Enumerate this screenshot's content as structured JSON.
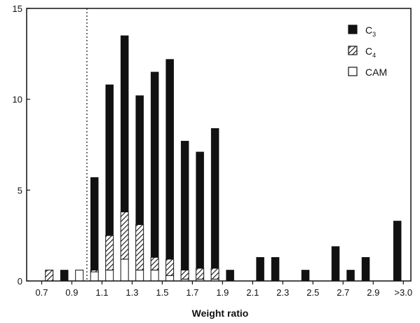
{
  "chart_data": {
    "type": "bar",
    "stacked": true,
    "title": "",
    "xlabel": "Weight ratio",
    "ylabel": "",
    "ylim": [
      0,
      15
    ],
    "yticks": [
      "0",
      "5",
      "10",
      "15"
    ],
    "xtick_labels": [
      "0.7",
      "0.9",
      "1.1",
      "1.3",
      "1.5",
      "1.7",
      "1.9",
      "2.1",
      "2.3",
      "2.5",
      "2.7",
      "2.9",
      ">3.0"
    ],
    "reference_line": {
      "x": 1.0,
      "style": "dotted"
    },
    "legend_position": "top-right",
    "categories": [
      "0.75",
      "0.85",
      "0.95",
      "1.05",
      "1.15",
      "1.25",
      "1.35",
      "1.45",
      "1.55",
      "1.65",
      "1.75",
      "1.85",
      "1.95",
      "2.05",
      "2.15",
      "2.25",
      "2.35",
      "2.45",
      "2.55",
      "2.65",
      "2.75",
      "2.85",
      "2.95",
      ">3.0"
    ],
    "series": [
      {
        "name": "C3",
        "fill": "solid",
        "values": [
          0,
          0.6,
          0,
          5.1,
          8.3,
          9.7,
          7.1,
          10.2,
          11.0,
          7.1,
          6.4,
          7.7,
          0.6,
          0,
          1.3,
          1.3,
          0,
          0.6,
          0,
          1.9,
          0.6,
          1.3,
          0,
          3.3
        ]
      },
      {
        "name": "C4",
        "fill": "hatched",
        "values": [
          0.6,
          0,
          0,
          0.1,
          1.9,
          2.6,
          2.5,
          0.7,
          0.9,
          0.5,
          0.6,
          0.6,
          0,
          0,
          0,
          0,
          0,
          0,
          0,
          0,
          0,
          0,
          0,
          0
        ]
      },
      {
        "name": "CAM",
        "fill": "open",
        "values": [
          0,
          0,
          0.6,
          0.5,
          0.6,
          1.2,
          0.6,
          0.6,
          0.3,
          0.1,
          0.1,
          0.1,
          0,
          0,
          0,
          0,
          0,
          0,
          0,
          0,
          0,
          0,
          0,
          0
        ]
      }
    ]
  },
  "legend": {
    "items": [
      {
        "main": "C",
        "sub": "3",
        "fill": "solid"
      },
      {
        "main": "C",
        "sub": "4",
        "fill": "hatched"
      },
      {
        "main": "CAM",
        "sub": "",
        "fill": "open"
      }
    ]
  }
}
